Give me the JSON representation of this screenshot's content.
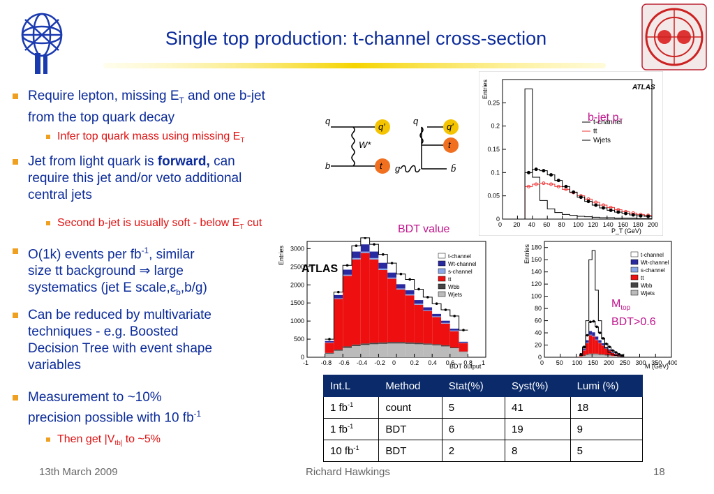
{
  "slide": {
    "title": "Single top production: t-channel cross-section",
    "footer": {
      "date": "13th March 2009",
      "author": "Richard Hawkings",
      "page": "18"
    }
  },
  "bullets": {
    "b1": {
      "pre": "Require lepton, missing E",
      "sub": "T",
      "post": " and one b-jet",
      "line2": "from the top quark decay"
    },
    "b1a": {
      "pre": "Infer top quark mass using missing E",
      "sub": "T"
    },
    "b2": {
      "pre": "Jet from light quark is ",
      "bold": "forward,",
      "post": " can",
      "line2": "require this jet and/or veto additional",
      "line3": "central jets"
    },
    "b2a": {
      "pre": "Second b-jet is usually soft - below E",
      "sub": "T",
      "post": " cut"
    },
    "b3": {
      "pre": "O(1k) events per fb",
      "sup": "-1",
      "post": ", similar",
      "line2a": "size tt background ",
      "arrow": "⇒",
      "line2b": " large",
      "line3a": "systematics (jet E scale,",
      "eps": "ε",
      "epssub": "b",
      "line3b": ",b/g)"
    },
    "b4": {
      "line1": "Can be reduced by multivariate",
      "line2": "techniques - e.g. Boosted",
      "line3": "Decision Tree with event shape",
      "line4": "variables"
    },
    "b5": {
      "line1": "Measurement to ~10%",
      "line2pre": "precision possible with 10 fb",
      "sup": "-1"
    },
    "b5a": {
      "pre": "Then get |V",
      "sub": "tb|",
      "post": " to ~5%"
    }
  },
  "labels": {
    "bjet_pre": "b-jet p",
    "bjet_sub": "T",
    "bdt_value": "BDT value",
    "mtop_pre": "M",
    "mtop_sub": "top",
    "bdt_cut": "BDT>0.6"
  },
  "feynman": {
    "left": {
      "q_in": "q",
      "q_out": "q′",
      "b_in": "b",
      "t_out": "t",
      "w": "W*"
    },
    "right": {
      "q_in": "q",
      "q_out": "q′",
      "t_out": "t",
      "g_in": "g",
      "bbar": "b̄"
    }
  },
  "table": {
    "headers": [
      "Int.L",
      "Method",
      "Stat(%)",
      "Syst(%)",
      "Lumi (%)"
    ],
    "rows": [
      {
        "lumi_pre": "1 fb",
        "lumi_sup": "-1",
        "method": "count",
        "stat": "5",
        "syst": "41",
        "lumi": "18"
      },
      {
        "lumi_pre": "1 fb",
        "lumi_sup": "-1",
        "method": "BDT",
        "stat": "6",
        "syst": "19",
        "lumi": "9"
      },
      {
        "lumi_pre": "10 fb",
        "lumi_sup": "-1",
        "method": "BDT",
        "stat": "2",
        "syst": "8",
        "lumi": "5"
      }
    ]
  },
  "colors": {
    "title": "#0a2a9a",
    "bullet": "#f0a020",
    "sub_bullet_text": "#e01010",
    "annotation": "#c0148c",
    "table_header": "#0a2a6a"
  },
  "chart_data": [
    {
      "type": "line",
      "title": "",
      "atlas_label": "ATLAS",
      "ylabel": "Entries",
      "xlabel": "P_T (GeV)",
      "xticks": [
        "0",
        "20",
        "40",
        "60",
        "80",
        "100",
        "120",
        "140",
        "160",
        "180",
        "200"
      ],
      "yticks": [
        "0",
        "0.05",
        "0.1",
        "0.15",
        "0.2",
        "0.25"
      ],
      "xlim": [
        0,
        200
      ],
      "ylim": [
        0,
        0.3
      ],
      "x": [
        5,
        15,
        25,
        35,
        45,
        55,
        65,
        75,
        85,
        95,
        105,
        115,
        125,
        135,
        145,
        155,
        165,
        175,
        185,
        195
      ],
      "series": [
        {
          "name": "t-channel",
          "values": [
            0,
            0,
            0,
            0.28,
            0.09,
            0.04,
            0.022,
            0.014,
            0.01,
            0.008,
            0.006,
            0.005,
            0.004,
            0.003,
            0.003,
            0.002,
            0.002,
            0.002,
            0.001,
            0.001
          ]
        },
        {
          "name": "tt",
          "values": [
            0,
            0,
            0,
            0.07,
            0.075,
            0.077,
            0.075,
            0.07,
            0.064,
            0.057,
            0.05,
            0.043,
            0.036,
            0.03,
            0.025,
            0.02,
            0.016,
            0.013,
            0.01,
            0.008
          ]
        },
        {
          "name": "Wjets",
          "values": [
            0,
            0,
            0,
            0.1,
            0.107,
            0.104,
            0.095,
            0.083,
            0.07,
            0.058,
            0.047,
            0.038,
            0.03,
            0.024,
            0.019,
            0.015,
            0.012,
            0.009,
            0.007,
            0.006
          ]
        }
      ]
    },
    {
      "type": "bar",
      "stacked": true,
      "atlas_label": "ATLAS",
      "ylabel": "Entries",
      "xlabel": "BDT output",
      "xticks": [
        "-1",
        "-0.8",
        "-0.6",
        "-0.4",
        "-0.2",
        "0",
        "0.2",
        "0.4",
        "0.6",
        "0.8",
        "1"
      ],
      "yticks": [
        "0",
        "500",
        "1000",
        "1500",
        "2000",
        "2500",
        "3000"
      ],
      "xlim": [
        -1,
        1
      ],
      "ylim": [
        0,
        3200
      ],
      "x": [
        -0.75,
        -0.65,
        -0.55,
        -0.45,
        -0.35,
        -0.25,
        -0.15,
        -0.05,
        0.05,
        0.15,
        0.25,
        0.35,
        0.45,
        0.55,
        0.65,
        0.75
      ],
      "series": [
        {
          "name": "Wjets",
          "values": [
            100,
            180,
            260,
            310,
            340,
            360,
            370,
            380,
            380,
            370,
            360,
            350,
            330,
            300,
            250,
            150
          ]
        },
        {
          "name": "Wbb",
          "values": [
            20,
            30,
            40,
            40,
            40,
            40,
            40,
            40,
            40,
            40,
            40,
            30,
            30,
            30,
            20,
            10
          ]
        },
        {
          "name": "tt",
          "values": [
            280,
            1400,
            1950,
            2350,
            2500,
            2300,
            2000,
            1750,
            1450,
            1300,
            1050,
            900,
            750,
            600,
            450,
            230
          ]
        },
        {
          "name": "s-channel",
          "values": [
            10,
            20,
            30,
            40,
            40,
            40,
            40,
            30,
            30,
            30,
            30,
            20,
            20,
            20,
            20,
            10
          ]
        },
        {
          "name": "Wt-channel",
          "values": [
            40,
            90,
            140,
            180,
            200,
            180,
            160,
            140,
            120,
            110,
            100,
            80,
            70,
            60,
            50,
            30
          ]
        },
        {
          "name": "t-channel",
          "values": [
            50,
            80,
            120,
            160,
            180,
            200,
            230,
            260,
            280,
            300,
            300,
            280,
            280,
            300,
            350,
            320
          ]
        }
      ]
    },
    {
      "type": "bar",
      "stacked": true,
      "ylabel": "Entries",
      "xlabel": "M (GeV)",
      "xticks": [
        "0",
        "50",
        "100",
        "150",
        "200",
        "250",
        "300",
        "350",
        "400"
      ],
      "yticks": [
        "0",
        "20",
        "40",
        "60",
        "80",
        "100",
        "120",
        "140",
        "160",
        "180"
      ],
      "xlim": [
        0,
        400
      ],
      "ylim": [
        0,
        190
      ],
      "x": [
        115,
        125,
        135,
        145,
        155,
        165,
        175,
        185,
        195,
        205,
        215,
        225,
        235,
        245
      ],
      "series": [
        {
          "name": "Wjets",
          "values": [
            1,
            2,
            4,
            5,
            5,
            5,
            4,
            4,
            3,
            3,
            2,
            2,
            1,
            1
          ]
        },
        {
          "name": "Wbb",
          "values": [
            0,
            1,
            1,
            1,
            1,
            1,
            1,
            1,
            1,
            1,
            0,
            0,
            0,
            0
          ]
        },
        {
          "name": "tt",
          "values": [
            2,
            8,
            18,
            30,
            28,
            22,
            18,
            14,
            10,
            7,
            5,
            3,
            2,
            1
          ]
        },
        {
          "name": "s-channel",
          "values": [
            0,
            1,
            1,
            1,
            1,
            1,
            1,
            1,
            1,
            0,
            0,
            0,
            0,
            0
          ]
        },
        {
          "name": "Wt-channel",
          "values": [
            1,
            2,
            4,
            6,
            6,
            5,
            4,
            3,
            2,
            2,
            1,
            1,
            1,
            0
          ]
        },
        {
          "name": "t-channel",
          "values": [
            1,
            3,
            8,
            15,
            18,
            16,
            12,
            8,
            5,
            4,
            3,
            2,
            1,
            1
          ]
        }
      ],
      "signal_outline": {
        "name": "t-channel",
        "values": [
          3,
          15,
          60,
          160,
          175,
          110,
          60,
          30,
          15,
          8,
          5,
          3,
          2,
          1
        ]
      }
    }
  ]
}
